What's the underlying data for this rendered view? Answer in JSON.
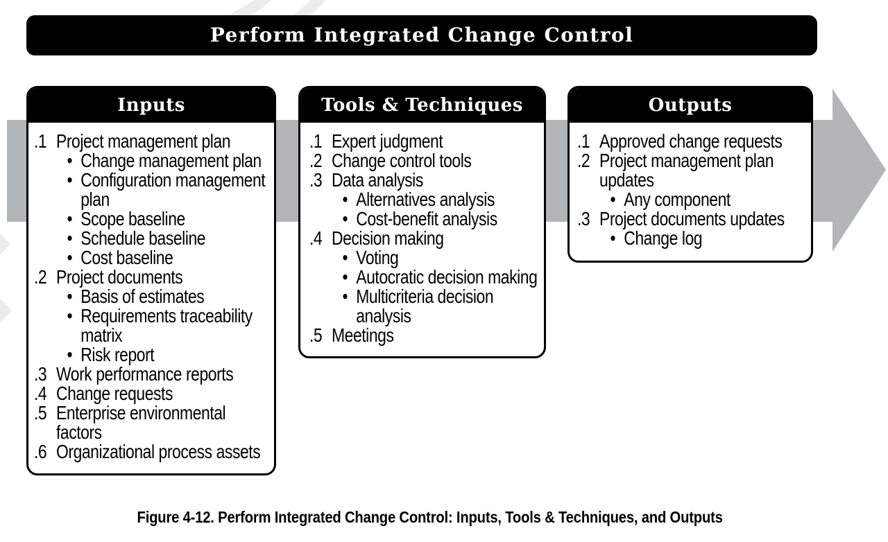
{
  "banner": {
    "title": "Perform Integrated Change Control"
  },
  "columns": [
    {
      "id": "inputs",
      "header": "Inputs",
      "items": [
        {
          "num": ".1",
          "text": "Project management plan",
          "bullets": [
            "Change management plan",
            "Configuration management plan",
            "Scope baseline",
            "Schedule baseline",
            "Cost baseline"
          ]
        },
        {
          "num": ".2",
          "text": "Project documents",
          "bullets": [
            "Basis of estimates",
            "Requirements traceability matrix",
            "Risk report"
          ]
        },
        {
          "num": ".3",
          "text": "Work performance reports",
          "bullets": []
        },
        {
          "num": ".4",
          "text": "Change requests",
          "bullets": []
        },
        {
          "num": ".5",
          "text": "Enterprise environmental factors",
          "bullets": []
        },
        {
          "num": ".6",
          "text": "Organizational process assets",
          "bullets": []
        }
      ]
    },
    {
      "id": "tools-techniques",
      "header": "Tools & Techniques",
      "items": [
        {
          "num": ".1",
          "text": "Expert judgment",
          "bullets": []
        },
        {
          "num": ".2",
          "text": "Change control tools",
          "bullets": []
        },
        {
          "num": ".3",
          "text": "Data analysis",
          "bullets": [
            "Alternatives analysis",
            "Cost-benefit analysis"
          ]
        },
        {
          "num": ".4",
          "text": "Decision making",
          "bullets": [
            "Voting",
            "Autocratic decision making",
            "Multicriteria decision analysis"
          ]
        },
        {
          "num": ".5",
          "text": "Meetings",
          "bullets": []
        }
      ]
    },
    {
      "id": "outputs",
      "header": "Outputs",
      "items": [
        {
          "num": ".1",
          "text": "Approved change requests",
          "bullets": []
        },
        {
          "num": ".2",
          "text": "Project management plan updates",
          "bullets": [
            "Any component"
          ]
        },
        {
          "num": ".3",
          "text": "Project documents updates",
          "bullets": [
            "Change log"
          ]
        }
      ]
    }
  ],
  "caption": "Figure 4-12. Perform Integrated Change Control: Inputs, Tools & Techniques, and Outputs",
  "bullet_char": "•",
  "colors": {
    "arrow_gray": "#b3b6b8",
    "watermark_gray": "#ececec",
    "box_black": "#000000",
    "text_black": "#000000",
    "background": "#ffffff"
  }
}
